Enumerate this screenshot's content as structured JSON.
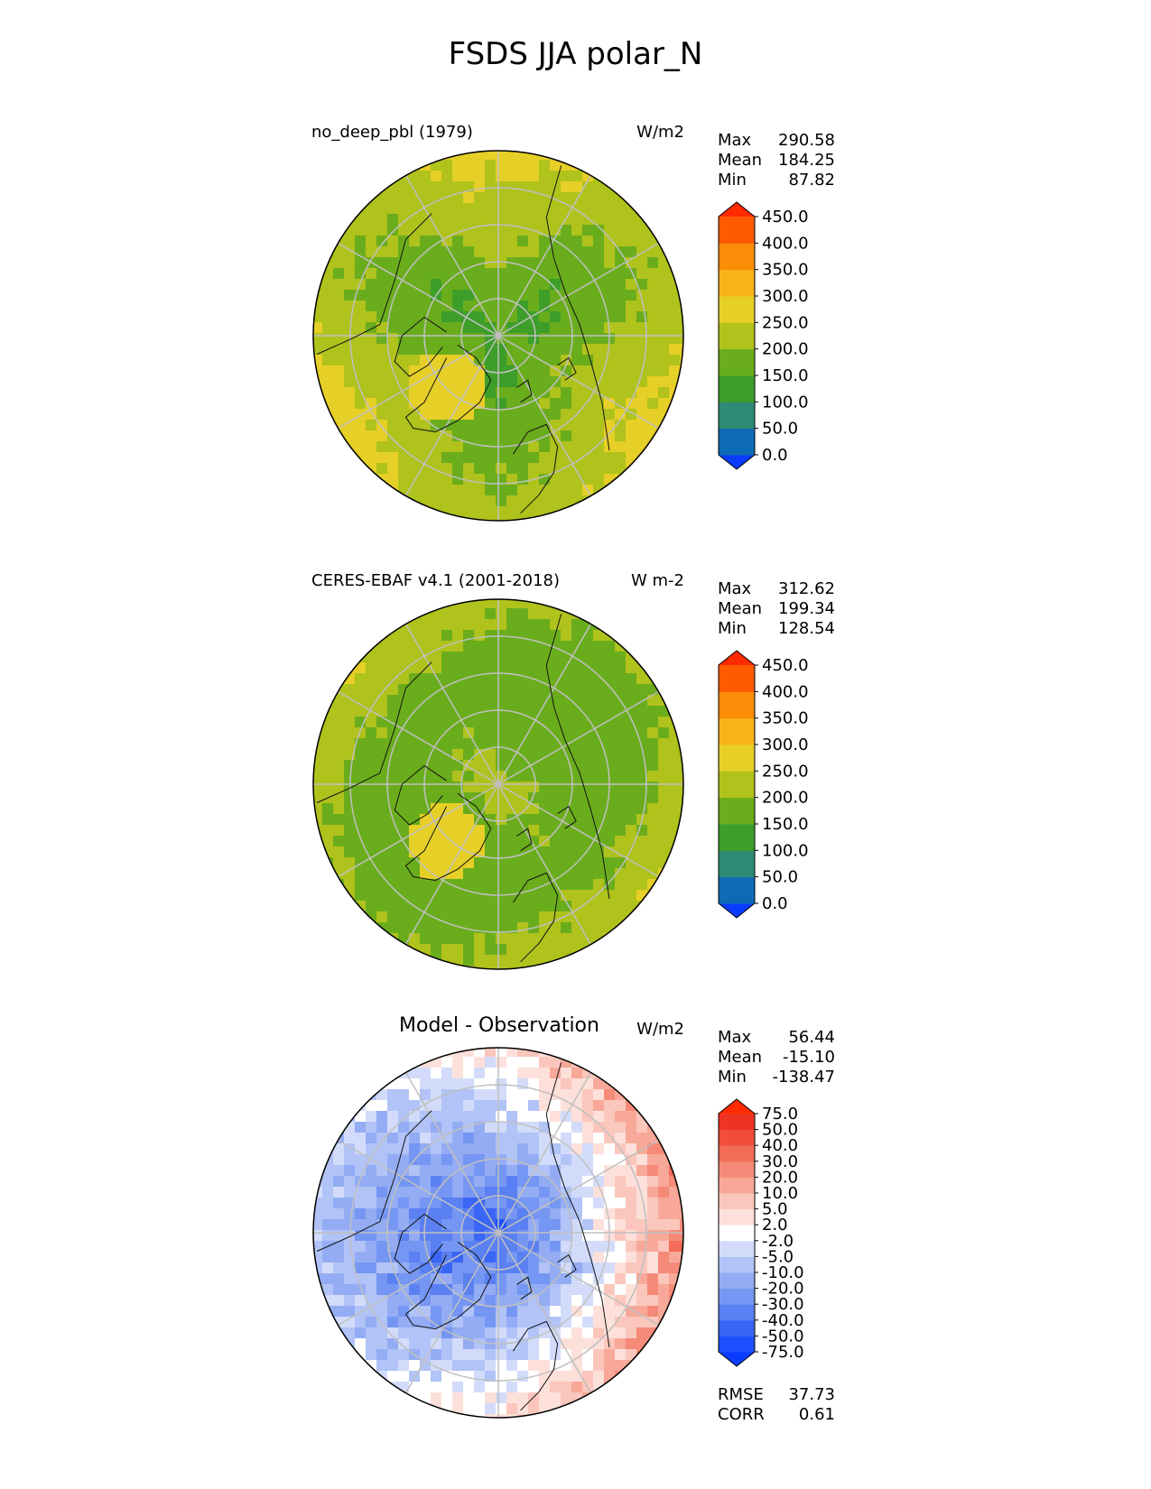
{
  "title": "FSDS JJA polar_N",
  "chart_data": [
    {
      "type": "heatmap",
      "projection": "north-polar-stereographic",
      "title_left": "no_deep_pbl (1979)",
      "title_right": "W/m2",
      "stats": [
        {
          "label": "Max",
          "value": "290.58"
        },
        {
          "label": "Mean",
          "value": "184.25"
        },
        {
          "label": "Min",
          "value": "87.82"
        }
      ],
      "colorbar": {
        "ticks": [
          "0.0",
          "50.0",
          "100.0",
          "150.0",
          "200.0",
          "250.0",
          "300.0",
          "350.0",
          "400.0",
          "450.0"
        ],
        "colors": [
          "#0a3cff",
          "#0d6bb5",
          "#2e8a73",
          "#3d9e2a",
          "#6aad1c",
          "#b0c21c",
          "#e6cf26",
          "#f8b41a",
          "#fb8c08",
          "#ff5a00",
          "#ff2a00"
        ],
        "extend": "both"
      }
    },
    {
      "type": "heatmap",
      "projection": "north-polar-stereographic",
      "title_left": "CERES-EBAF v4.1 (2001-2018)",
      "title_right": "W m-2",
      "stats": [
        {
          "label": "Max",
          "value": "312.62"
        },
        {
          "label": "Mean",
          "value": "199.34"
        },
        {
          "label": "Min",
          "value": "128.54"
        }
      ],
      "colorbar": {
        "ticks": [
          "0.0",
          "50.0",
          "100.0",
          "150.0",
          "200.0",
          "250.0",
          "300.0",
          "350.0",
          "400.0",
          "450.0"
        ],
        "colors": [
          "#0a3cff",
          "#0d6bb5",
          "#2e8a73",
          "#3d9e2a",
          "#6aad1c",
          "#b0c21c",
          "#e6cf26",
          "#f8b41a",
          "#fb8c08",
          "#ff5a00",
          "#ff2a00"
        ],
        "extend": "both"
      }
    },
    {
      "type": "heatmap",
      "projection": "north-polar-stereographic",
      "title_center": "Model - Observation",
      "title_right": "W/m2",
      "stats": [
        {
          "label": "Max",
          "value": "56.44"
        },
        {
          "label": "Mean",
          "value": "-15.10"
        },
        {
          "label": "Min",
          "value": "-138.47"
        }
      ],
      "colorbar": {
        "ticks": [
          "-75.0",
          "-50.0",
          "-40.0",
          "-30.0",
          "-20.0",
          "-10.0",
          "-5.0",
          "-2.0",
          "2.0",
          "5.0",
          "10.0",
          "20.0",
          "30.0",
          "40.0",
          "50.0",
          "75.0"
        ],
        "colors": [
          "#0a3cff",
          "#1f50ff",
          "#3a66f5",
          "#5a80f2",
          "#7596f2",
          "#94acf3",
          "#b1c3f7",
          "#d2dcfa",
          "#ffffff",
          "#fde0da",
          "#fbc6bc",
          "#f8a898",
          "#f58a78",
          "#f26c58",
          "#f04e3a",
          "#ef3322",
          "#ff2a00"
        ],
        "extend": "both"
      },
      "metrics": [
        {
          "label": "RMSE",
          "value": "37.73"
        },
        {
          "label": "CORR",
          "value": "0.61"
        }
      ]
    }
  ]
}
